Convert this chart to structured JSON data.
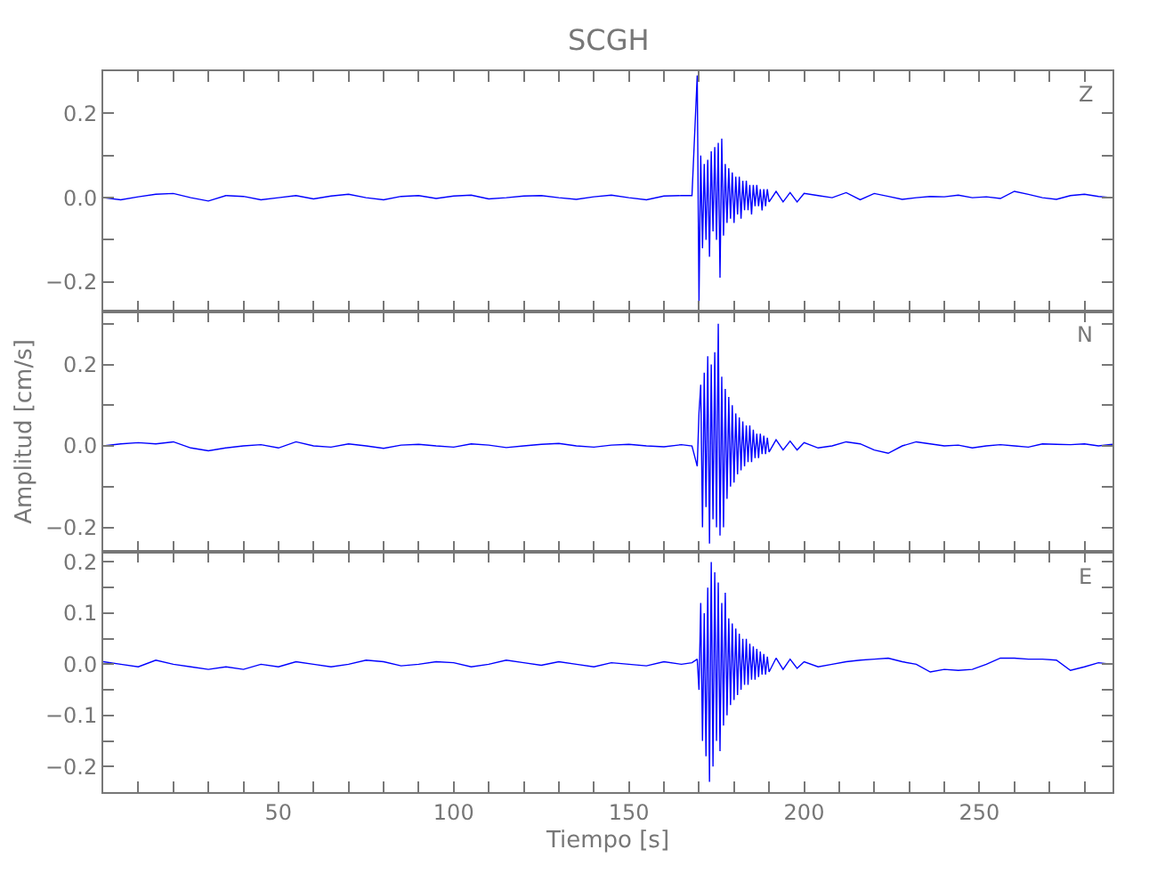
{
  "chart_data": [
    {
      "type": "line",
      "title": "SCGH",
      "annotations": [
        "Z"
      ],
      "color": "#0000ff",
      "tick_labels": "y",
      "x": [
        0,
        5,
        10,
        15,
        20,
        25,
        30,
        35,
        40,
        45,
        50,
        55,
        60,
        65,
        70,
        75,
        80,
        85,
        90,
        95,
        100,
        105,
        110,
        115,
        120,
        125,
        130,
        135,
        140,
        145,
        150,
        155,
        160,
        165,
        168,
        169.5,
        170,
        170.5,
        171,
        171.5,
        172,
        172.5,
        173,
        173.5,
        174,
        174.5,
        175,
        175.5,
        176,
        176.5,
        177,
        177.5,
        178,
        178.5,
        179,
        179.5,
        180,
        180.5,
        181,
        181.5,
        182,
        182.5,
        183,
        183.5,
        184,
        184.5,
        185,
        185.5,
        186,
        186.5,
        187,
        187.5,
        188,
        188.5,
        189,
        189.5,
        190,
        192,
        194,
        196,
        198,
        200,
        204,
        208,
        212,
        216,
        220,
        224,
        228,
        232,
        236,
        240,
        244,
        248,
        252,
        256,
        260,
        264,
        268,
        272,
        276,
        280,
        284,
        288
      ],
      "values": [
        0.0,
        -0.005,
        0.002,
        0.008,
        0.01,
        0.0,
        -0.008,
        0.005,
        0.003,
        -0.005,
        0.0,
        0.005,
        -0.003,
        0.004,
        0.008,
        0.0,
        -0.005,
        0.003,
        0.005,
        -0.002,
        0.004,
        0.006,
        -0.003,
        0.0,
        0.004,
        0.005,
        0.0,
        -0.004,
        0.002,
        0.006,
        0.0,
        -0.005,
        0.004,
        0.005,
        0.005,
        0.29,
        -0.25,
        0.1,
        -0.12,
        0.08,
        -0.1,
        0.09,
        -0.14,
        0.11,
        -0.08,
        0.12,
        -0.1,
        0.13,
        -0.19,
        0.14,
        -0.09,
        0.08,
        -0.06,
        0.07,
        -0.05,
        0.06,
        -0.06,
        0.05,
        -0.04,
        0.05,
        -0.05,
        0.04,
        -0.03,
        0.04,
        -0.03,
        0.03,
        -0.04,
        0.03,
        -0.02,
        0.03,
        -0.02,
        0.02,
        -0.03,
        0.02,
        -0.02,
        0.02,
        -0.01,
        0.015,
        -0.01,
        0.012,
        -0.01,
        0.01,
        0.005,
        0.0,
        0.012,
        -0.005,
        0.01,
        0.003,
        -0.004,
        0.0,
        0.003,
        0.002,
        0.006,
        0.0,
        0.002,
        -0.002,
        0.015,
        0.008,
        0.0,
        -0.004,
        0.005,
        0.008,
        0.003,
        0.0
      ],
      "xlim": [
        0,
        288
      ],
      "xticks": [
        {
          "value": 10,
          "label": null
        },
        {
          "value": 20,
          "label": null
        },
        {
          "value": 30,
          "label": null
        },
        {
          "value": 40,
          "label": null
        },
        50,
        {
          "value": 60,
          "label": null
        },
        {
          "value": 70,
          "label": null
        },
        {
          "value": 80,
          "label": null
        },
        {
          "value": 90,
          "label": null
        },
        100,
        {
          "value": 110,
          "label": null
        },
        {
          "value": 120,
          "label": null
        },
        {
          "value": 130,
          "label": null
        },
        {
          "value": 140,
          "label": null
        },
        150,
        {
          "value": 160,
          "label": null
        },
        {
          "value": 170,
          "label": null
        },
        {
          "value": 180,
          "label": null
        },
        {
          "value": 190,
          "label": null
        },
        200,
        {
          "value": 210,
          "label": null
        },
        {
          "value": 220,
          "label": null
        },
        {
          "value": 230,
          "label": null
        },
        {
          "value": 240,
          "label": null
        },
        250,
        {
          "value": 260,
          "label": null
        },
        {
          "value": 270,
          "label": null
        },
        {
          "value": 280,
          "label": null
        }
      ],
      "ylim": [
        -0.27,
        0.3
      ],
      "yticks": [
        {
          "value": -0.2,
          "label": "−0.2"
        },
        {
          "value": -0.1,
          "label": null
        },
        {
          "value": 0,
          "label": "0.0"
        },
        {
          "value": 0.1,
          "label": null
        },
        {
          "value": 0.2,
          "label": "0.2"
        }
      ]
    },
    {
      "type": "line",
      "ylabel": "Amplitud [cm/s]",
      "annotations": [
        "N"
      ],
      "color": "#0000ff",
      "tick_labels": "y",
      "x": [
        0,
        5,
        10,
        15,
        20,
        25,
        30,
        35,
        40,
        45,
        50,
        55,
        60,
        65,
        70,
        75,
        80,
        85,
        90,
        95,
        100,
        105,
        110,
        115,
        120,
        125,
        130,
        135,
        140,
        145,
        150,
        155,
        160,
        165,
        168,
        169.5,
        170,
        170.5,
        171,
        171.5,
        172,
        172.5,
        173,
        173.5,
        174,
        174.5,
        175,
        175.5,
        176,
        176.5,
        177,
        177.5,
        178,
        178.5,
        179,
        179.5,
        180,
        180.5,
        181,
        181.5,
        182,
        182.5,
        183,
        183.5,
        184,
        184.5,
        185,
        185.5,
        186,
        186.5,
        187,
        187.5,
        188,
        188.5,
        189,
        189.5,
        190,
        192,
        194,
        196,
        198,
        200,
        204,
        208,
        212,
        216,
        220,
        224,
        228,
        232,
        236,
        240,
        244,
        248,
        252,
        256,
        260,
        264,
        268,
        272,
        276,
        280,
        284,
        288
      ],
      "values": [
        0.0,
        0.005,
        0.008,
        0.005,
        0.01,
        -0.005,
        -0.012,
        -0.005,
        0.0,
        0.003,
        -0.005,
        0.01,
        0.0,
        -0.003,
        0.005,
        0.0,
        -0.006,
        0.002,
        0.004,
        0.0,
        -0.003,
        0.005,
        0.002,
        -0.004,
        0.0,
        0.004,
        0.006,
        0.0,
        -0.003,
        0.002,
        0.004,
        0.0,
        -0.002,
        0.003,
        0.0,
        -0.05,
        0.08,
        0.15,
        -0.2,
        0.18,
        -0.15,
        0.22,
        -0.24,
        0.2,
        -0.18,
        0.23,
        -0.2,
        0.3,
        -0.22,
        0.17,
        -0.2,
        0.14,
        -0.13,
        0.12,
        -0.1,
        0.1,
        -0.09,
        0.08,
        -0.07,
        0.07,
        -0.06,
        0.06,
        -0.05,
        0.05,
        -0.04,
        0.05,
        -0.04,
        0.04,
        -0.03,
        0.03,
        -0.03,
        0.03,
        -0.02,
        0.025,
        -0.02,
        0.02,
        -0.015,
        0.015,
        -0.01,
        0.012,
        -0.01,
        0.008,
        -0.005,
        0.0,
        0.01,
        0.005,
        -0.01,
        -0.018,
        0.0,
        0.01,
        0.005,
        0.0,
        0.002,
        -0.005,
        0.0,
        0.003,
        0.0,
        -0.003,
        0.005,
        0.004,
        0.003,
        0.005,
        0.0,
        0.004
      ],
      "xlim": [
        0,
        288
      ],
      "xticks": [
        {
          "value": 10,
          "label": null
        },
        {
          "value": 20,
          "label": null
        },
        {
          "value": 30,
          "label": null
        },
        {
          "value": 40,
          "label": null
        },
        50,
        {
          "value": 60,
          "label": null
        },
        {
          "value": 70,
          "label": null
        },
        {
          "value": 80,
          "label": null
        },
        {
          "value": 90,
          "label": null
        },
        100,
        {
          "value": 110,
          "label": null
        },
        {
          "value": 120,
          "label": null
        },
        {
          "value": 130,
          "label": null
        },
        {
          "value": 140,
          "label": null
        },
        150,
        {
          "value": 160,
          "label": null
        },
        {
          "value": 170,
          "label": null
        },
        {
          "value": 180,
          "label": null
        },
        {
          "value": 190,
          "label": null
        },
        200,
        {
          "value": 210,
          "label": null
        },
        {
          "value": 220,
          "label": null
        },
        {
          "value": 230,
          "label": null
        },
        {
          "value": 240,
          "label": null
        },
        250,
        {
          "value": 260,
          "label": null
        },
        {
          "value": 270,
          "label": null
        },
        {
          "value": 280,
          "label": null
        }
      ],
      "ylim": [
        -0.26,
        0.33
      ],
      "yticks": [
        {
          "value": -0.2,
          "label": "−0.2"
        },
        {
          "value": -0.1,
          "label": null
        },
        {
          "value": 0,
          "label": "0.0"
        },
        {
          "value": 0.1,
          "label": null
        },
        {
          "value": 0.2,
          "label": "0.2"
        },
        {
          "value": 0.3,
          "label": null
        }
      ]
    },
    {
      "type": "line",
      "xlabel": "Tiempo [s]",
      "annotations": [
        "E"
      ],
      "color": "#0000ff",
      "x": [
        0,
        5,
        10,
        15,
        20,
        25,
        30,
        35,
        40,
        45,
        50,
        55,
        60,
        65,
        70,
        75,
        80,
        85,
        90,
        95,
        100,
        105,
        110,
        115,
        120,
        125,
        130,
        135,
        140,
        145,
        150,
        155,
        160,
        165,
        168,
        169.5,
        170,
        170.5,
        171,
        171.5,
        172,
        172.5,
        173,
        173.5,
        174,
        174.5,
        175,
        175.5,
        176,
        176.5,
        177,
        177.5,
        178,
        178.5,
        179,
        179.5,
        180,
        180.5,
        181,
        181.5,
        182,
        182.5,
        183,
        183.5,
        184,
        184.5,
        185,
        185.5,
        186,
        186.5,
        187,
        187.5,
        188,
        188.5,
        189,
        189.5,
        190,
        192,
        194,
        196,
        198,
        200,
        204,
        208,
        212,
        216,
        220,
        224,
        228,
        232,
        236,
        240,
        244,
        248,
        252,
        256,
        260,
        264,
        268,
        272,
        276,
        280,
        284,
        288
      ],
      "values": [
        0.005,
        0.0,
        -0.005,
        0.008,
        0.0,
        -0.005,
        -0.01,
        -0.005,
        -0.01,
        0.0,
        -0.005,
        0.005,
        0.0,
        -0.005,
        0.0,
        0.008,
        0.005,
        -0.003,
        0.0,
        0.005,
        0.003,
        -0.005,
        0.0,
        0.008,
        0.003,
        -0.002,
        0.005,
        0.0,
        -0.005,
        0.003,
        0.0,
        -0.003,
        0.005,
        0.0,
        0.003,
        0.01,
        -0.05,
        0.12,
        -0.15,
        0.1,
        -0.18,
        0.15,
        -0.23,
        0.2,
        -0.2,
        0.18,
        -0.15,
        0.16,
        -0.17,
        0.12,
        -0.12,
        0.14,
        -0.1,
        0.09,
        -0.08,
        0.08,
        -0.07,
        0.07,
        -0.06,
        0.06,
        -0.05,
        0.05,
        -0.04,
        0.05,
        -0.04,
        0.04,
        -0.03,
        0.035,
        -0.03,
        0.03,
        -0.025,
        0.025,
        -0.02,
        0.02,
        -0.02,
        0.015,
        -0.015,
        0.012,
        -0.01,
        0.01,
        -0.008,
        0.005,
        -0.005,
        0.0,
        0.005,
        0.008,
        0.01,
        0.012,
        0.005,
        0.0,
        -0.015,
        -0.01,
        -0.012,
        -0.01,
        0.0,
        0.012,
        0.012,
        0.01,
        0.01,
        0.008,
        -0.012,
        -0.005,
        0.003,
        0.0
      ],
      "xlim": [
        0,
        288
      ],
      "xticks": [
        {
          "value": 10,
          "label": null
        },
        {
          "value": 20,
          "label": null
        },
        {
          "value": 30,
          "label": null
        },
        {
          "value": 40,
          "label": null
        },
        50,
        {
          "value": 60,
          "label": null
        },
        {
          "value": 70,
          "label": null
        },
        {
          "value": 80,
          "label": null
        },
        {
          "value": 90,
          "label": null
        },
        100,
        {
          "value": 110,
          "label": null
        },
        {
          "value": 120,
          "label": null
        },
        {
          "value": 130,
          "label": null
        },
        {
          "value": 140,
          "label": null
        },
        150,
        {
          "value": 160,
          "label": null
        },
        {
          "value": 170,
          "label": null
        },
        {
          "value": 180,
          "label": null
        },
        {
          "value": 190,
          "label": null
        },
        200,
        {
          "value": 210,
          "label": null
        },
        {
          "value": 220,
          "label": null
        },
        {
          "value": 230,
          "label": null
        },
        {
          "value": 240,
          "label": null
        },
        250,
        {
          "value": 260,
          "label": null
        },
        {
          "value": 270,
          "label": null
        },
        {
          "value": 280,
          "label": null
        }
      ],
      "ylim": [
        -0.25,
        0.22
      ],
      "yticks": [
        {
          "value": -0.2,
          "label": "−0.2"
        },
        {
          "value": -0.15,
          "label": null
        },
        {
          "value": -0.1,
          "label": "−0.1"
        },
        {
          "value": -0.05,
          "label": null
        },
        {
          "value": 0,
          "label": "0.0"
        },
        {
          "value": 0.05,
          "label": null
        },
        {
          "value": 0.1,
          "label": "0.1"
        },
        {
          "value": 0.15,
          "label": null
        },
        {
          "value": 0.2,
          "label": "0.2"
        }
      ]
    }
  ]
}
